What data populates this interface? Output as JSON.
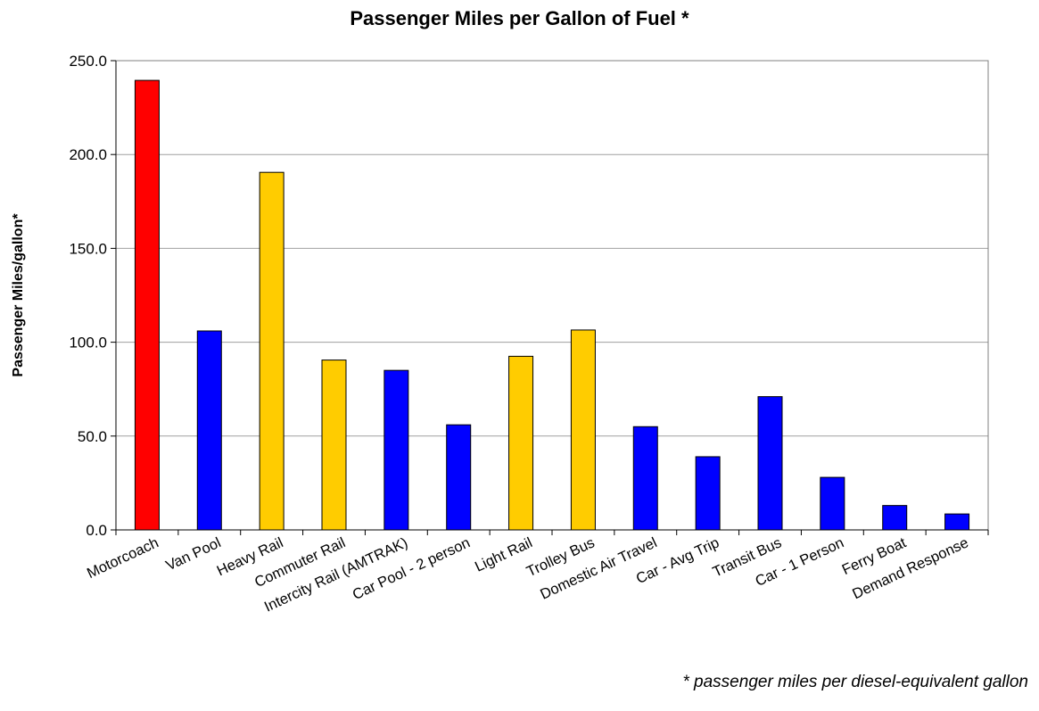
{
  "title": "Passenger Miles per Gallon of Fuel *",
  "footnote": "* passenger miles per diesel-equivalent gallon",
  "colors": {
    "red": "#ff0000",
    "blue": "#0000ff",
    "gold": "#ffcc00",
    "grid": "#a0a0a0"
  },
  "chart_data": {
    "type": "bar",
    "title": "Passenger Miles per Gallon of Fuel *",
    "xlabel": "",
    "ylabel": "Passenger Miles/gallon*",
    "ylim": [
      0,
      250
    ],
    "yticks": [
      "0.0",
      "50.0",
      "100.0",
      "150.0",
      "200.0",
      "250.0"
    ],
    "grid": true,
    "categories": [
      "Motorcoach",
      "Van Pool",
      "Heavy Rail",
      "Commuter Rail",
      "Intercity Rail (AMTRAK)",
      "Car Pool - 2 person",
      "Light Rail",
      "Trolley Bus",
      "Domestic Air Travel",
      "Car - Avg Trip",
      "Transit Bus",
      "Car - 1 Person",
      "Ferry Boat",
      "Demand Response"
    ],
    "values": [
      239.5,
      106,
      190.5,
      90.5,
      85,
      56,
      92.5,
      106.5,
      55,
      39,
      71,
      28,
      13,
      8.5
    ],
    "bar_colors": [
      "#ff0000",
      "#0000ff",
      "#ffcc00",
      "#ffcc00",
      "#0000ff",
      "#0000ff",
      "#ffcc00",
      "#ffcc00",
      "#0000ff",
      "#0000ff",
      "#0000ff",
      "#0000ff",
      "#0000ff",
      "#0000ff"
    ]
  }
}
